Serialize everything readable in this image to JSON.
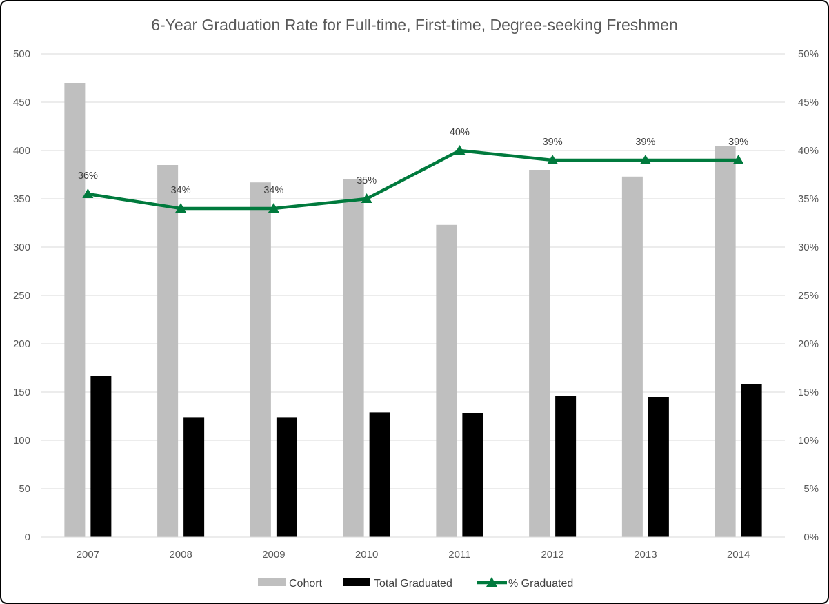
{
  "chart_data": {
    "type": "bar",
    "title": "6-Year Graduation Rate for Full-time, First-time, Degree-seeking Freshmen",
    "categories": [
      "2007",
      "2008",
      "2009",
      "2010",
      "2011",
      "2012",
      "2013",
      "2014"
    ],
    "series": [
      {
        "name": "Cohort",
        "type": "bar",
        "axis": "left",
        "color": "#bfbfbf",
        "values": [
          470,
          385,
          367,
          370,
          323,
          380,
          373,
          405
        ]
      },
      {
        "name": "Total Graduated",
        "type": "bar",
        "axis": "left",
        "color": "#000000",
        "values": [
          167,
          124,
          124,
          129,
          128,
          146,
          145,
          158
        ]
      },
      {
        "name": "% Graduated",
        "type": "line",
        "axis": "right",
        "color": "#007a3d",
        "marker": "triangle",
        "values": [
          0.355,
          0.34,
          0.34,
          0.35,
          0.4,
          0.39,
          0.39,
          0.39
        ],
        "labels": [
          "36%",
          "34%",
          "34%",
          "35%",
          "40%",
          "39%",
          "39%",
          "39%"
        ]
      }
    ],
    "y_left": {
      "ylim": [
        0,
        500
      ],
      "ticks": [
        "0",
        "50",
        "100",
        "150",
        "200",
        "250",
        "300",
        "350",
        "400",
        "450",
        "500"
      ]
    },
    "y_right": {
      "ylim": [
        0,
        0.5
      ],
      "ticks": [
        "0%",
        "5%",
        "10%",
        "15%",
        "20%",
        "25%",
        "30%",
        "35%",
        "40%",
        "45%",
        "50%"
      ]
    },
    "grid": true,
    "legend": "bottom"
  }
}
